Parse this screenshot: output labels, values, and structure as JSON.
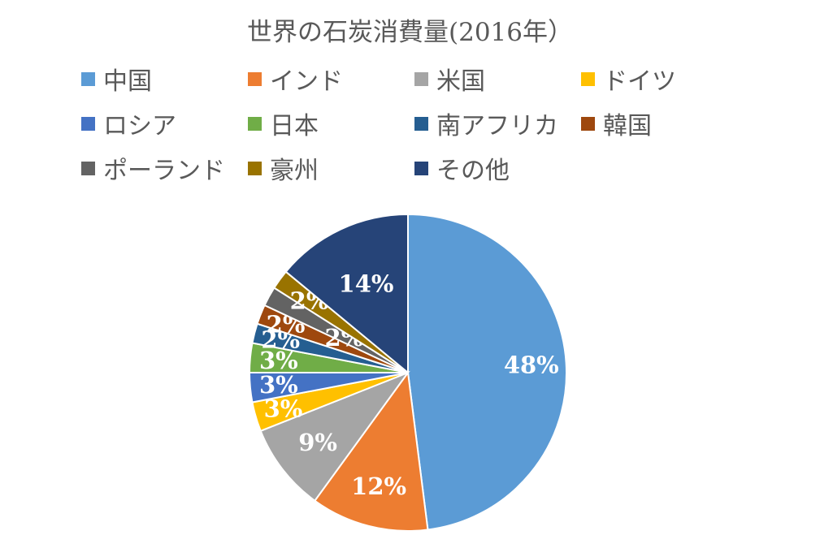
{
  "chart_data": {
    "type": "pie",
    "title": "世界の石炭消費量(2016年）",
    "legend_position": "top",
    "slices": [
      {
        "name": "中国",
        "value": 48,
        "label": "48%",
        "color": "#5B9BD5"
      },
      {
        "name": "インド",
        "value": 12,
        "label": "12%",
        "color": "#ED7D31"
      },
      {
        "name": "米国",
        "value": 9,
        "label": "9%",
        "color": "#A5A5A5"
      },
      {
        "name": "ドイツ",
        "value": 3,
        "label": "3%",
        "color": "#FFC000"
      },
      {
        "name": "ロシア",
        "value": 3,
        "label": "3%",
        "color": "#4472C4"
      },
      {
        "name": "日本",
        "value": 3,
        "label": "3%",
        "color": "#70AD47"
      },
      {
        "name": "南アフリカ",
        "value": 2,
        "label": "2%",
        "color": "#255E91"
      },
      {
        "name": "韓国",
        "value": 2,
        "label": "2%",
        "color": "#9E480E"
      },
      {
        "name": "ポーランド",
        "value": 2,
        "label": "2%",
        "color": "#636363"
      },
      {
        "name": "豪州",
        "value": 2,
        "label": "2%",
        "color": "#997300"
      },
      {
        "name": "その他",
        "value": 14,
        "label": "14%",
        "color": "#264478"
      }
    ]
  }
}
